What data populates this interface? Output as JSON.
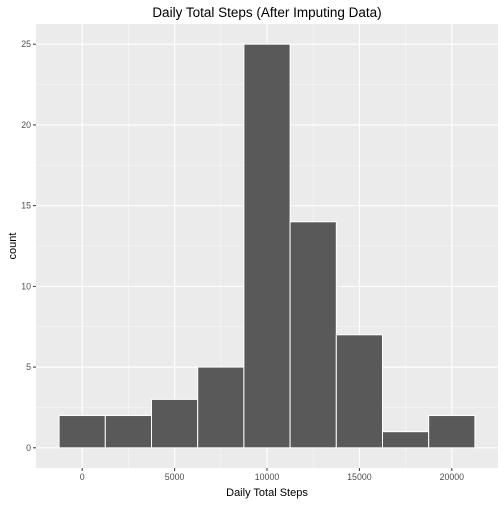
{
  "chart_data": {
    "type": "bar",
    "subtype": "histogram",
    "title": "Daily Total Steps (After Imputing Data)",
    "xlabel": "Daily Total Steps",
    "ylabel": "count",
    "bins": [
      {
        "x0": -1250,
        "x1": 1250,
        "count": 2
      },
      {
        "x0": 1250,
        "x1": 3750,
        "count": 2
      },
      {
        "x0": 3750,
        "x1": 6250,
        "count": 3
      },
      {
        "x0": 6250,
        "x1": 8750,
        "count": 5
      },
      {
        "x0": 8750,
        "x1": 11250,
        "count": 25
      },
      {
        "x0": 11250,
        "x1": 13750,
        "count": 14
      },
      {
        "x0": 13750,
        "x1": 16250,
        "count": 7
      },
      {
        "x0": 16250,
        "x1": 18750,
        "count": 1
      },
      {
        "x0": 18750,
        "x1": 21250,
        "count": 2
      }
    ],
    "xlim": [
      -2500,
      22500
    ],
    "ylim": [
      -1.25,
      26.25
    ],
    "x_ticks": [
      0,
      5000,
      10000,
      15000,
      20000
    ],
    "x_tick_labels": [
      "0",
      "5000",
      "10000",
      "15000",
      "20000"
    ],
    "y_ticks": [
      0,
      5,
      10,
      15,
      20,
      25
    ],
    "y_tick_labels": [
      "0",
      "5",
      "10",
      "15",
      "20",
      "25"
    ],
    "grid": true,
    "legend": "none",
    "colors": {
      "bar_fill": "#595959",
      "bar_outline": "#ffffff",
      "panel_background": "#ebebeb",
      "grid_major": "#ffffff",
      "tick_label": "#4d4d4d",
      "tick_mark": "#333333"
    }
  }
}
